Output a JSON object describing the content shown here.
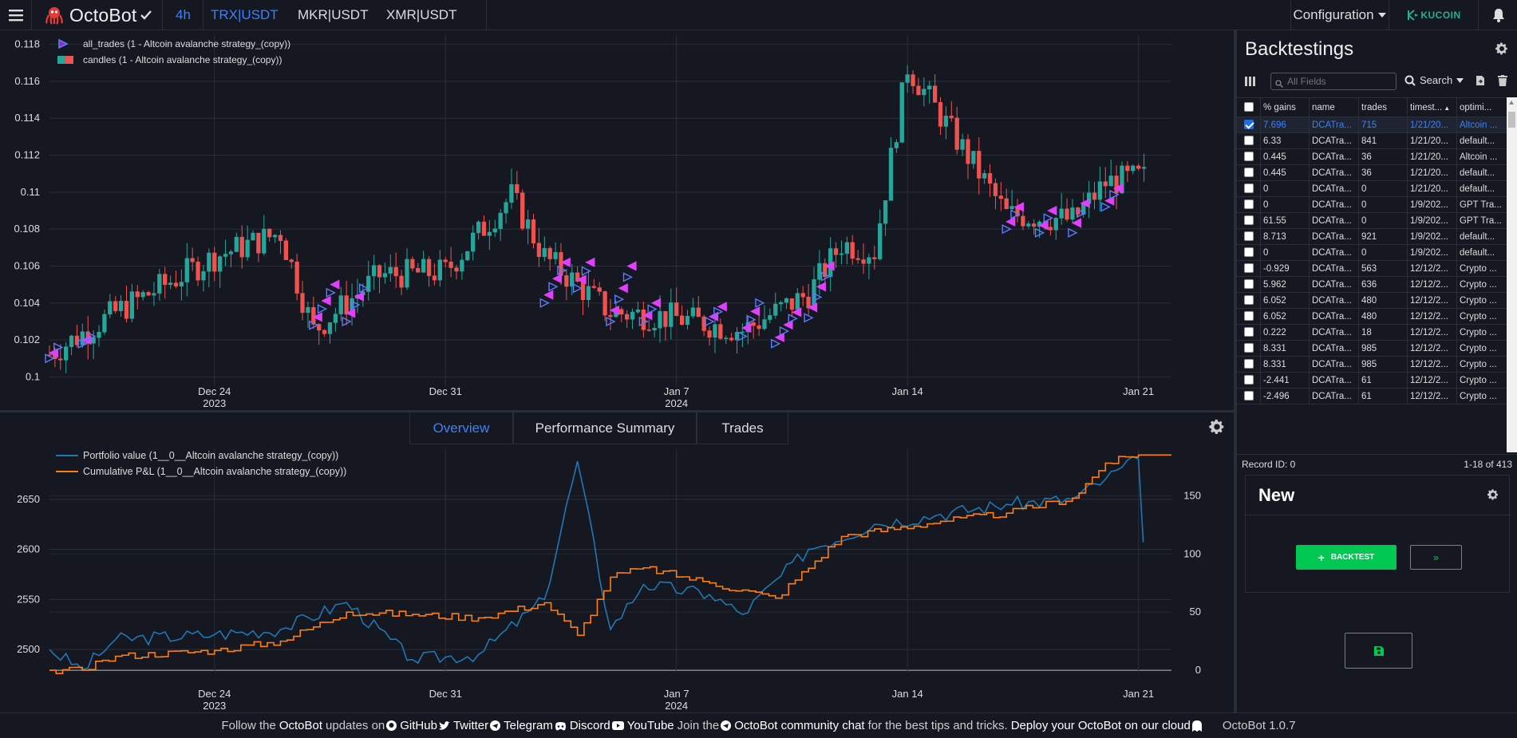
{
  "app": {
    "name": "OctoBot",
    "timeframe": "4h"
  },
  "pairs": [
    "TRX|USDT",
    "MKR|USDT",
    "XMR|USDT"
  ],
  "topbar": {
    "configuration": "Configuration",
    "exchange": "KUCOIN"
  },
  "upper_chart": {
    "legend": [
      "all_trades (1 - Altcoin avalanche strategy_(copy))",
      "candles (1 - Altcoin avalanche strategy_(copy))"
    ],
    "y_ticks": [
      "0.118",
      "0.116",
      "0.114",
      "0.112",
      "0.11",
      "0.108",
      "0.106",
      "0.104",
      "0.102",
      "0.1"
    ],
    "x_ticks": [
      {
        "label": "Dec 24",
        "sub": "2023"
      },
      {
        "label": "Dec 31",
        "sub": ""
      },
      {
        "label": "Jan 7",
        "sub": "2024"
      },
      {
        "label": "Jan 14",
        "sub": ""
      },
      {
        "label": "Jan 21",
        "sub": ""
      }
    ]
  },
  "tabs": [
    "Overview",
    "Performance Summary",
    "Trades"
  ],
  "lower_chart": {
    "legend": [
      "Portfolio value (1__0__Altcoin avalanche strategy_(copy))",
      "Cumulative P&L (1__0__Altcoin avalanche strategy_(copy))"
    ],
    "y_left_ticks": [
      "2650",
      "2600",
      "2550",
      "2500"
    ],
    "y_right_ticks": [
      "150",
      "100",
      "50",
      "0"
    ],
    "x_ticks": [
      {
        "label": "Dec 24",
        "sub": "2023"
      },
      {
        "label": "Dec 31",
        "sub": ""
      },
      {
        "label": "Jan 7",
        "sub": "2024"
      },
      {
        "label": "Jan 14",
        "sub": ""
      },
      {
        "label": "Jan 21",
        "sub": ""
      }
    ]
  },
  "chart_data": [
    {
      "type": "candlestick",
      "series_names": [
        "all_trades (1 - Altcoin avalanche strategy_(copy))",
        "candles (1 - Altcoin avalanche strategy_(copy))"
      ],
      "y_range": [
        0.0995,
        0.1185
      ],
      "x_range": [
        "2023-12-19",
        "2024-01-22"
      ],
      "approx_close_path": [
        {
          "x": "2023-12-19",
          "y": 0.1012
        },
        {
          "x": "2023-12-21",
          "y": 0.1035
        },
        {
          "x": "2023-12-24",
          "y": 0.1065
        },
        {
          "x": "2023-12-26",
          "y": 0.1078
        },
        {
          "x": "2023-12-27",
          "y": 0.1025
        },
        {
          "x": "2023-12-29",
          "y": 0.1055
        },
        {
          "x": "2023-12-31",
          "y": 0.1057
        },
        {
          "x": "2024-01-02",
          "y": 0.1098
        },
        {
          "x": "2024-01-03",
          "y": 0.1065
        },
        {
          "x": "2024-01-05",
          "y": 0.1035
        },
        {
          "x": "2024-01-07",
          "y": 0.1032
        },
        {
          "x": "2024-01-09",
          "y": 0.1025
        },
        {
          "x": "2024-01-11",
          "y": 0.1045
        },
        {
          "x": "2024-01-12",
          "y": 0.1072
        },
        {
          "x": "2024-01-13",
          "y": 0.1068
        },
        {
          "x": "2024-01-14",
          "y": 0.1168
        },
        {
          "x": "2024-01-16",
          "y": 0.1115
        },
        {
          "x": "2024-01-17",
          "y": 0.1088
        },
        {
          "x": "2024-01-19",
          "y": 0.1085
        },
        {
          "x": "2024-01-20",
          "y": 0.1105
        },
        {
          "x": "2024-01-21",
          "y": 0.1108
        }
      ]
    },
    {
      "type": "line",
      "series": [
        {
          "name": "Portfolio value (1__0__Altcoin avalanche strategy_(copy))",
          "axis": "left",
          "points": [
            {
              "x": "2023-12-19",
              "y": 2500
            },
            {
              "x": "2023-12-20",
              "y": 2480
            },
            {
              "x": "2023-12-21",
              "y": 2510
            },
            {
              "x": "2023-12-24",
              "y": 2515
            },
            {
              "x": "2023-12-26",
              "y": 2520
            },
            {
              "x": "2023-12-28",
              "y": 2547
            },
            {
              "x": "2023-12-30",
              "y": 2490
            },
            {
              "x": "2024-01-01",
              "y": 2495
            },
            {
              "x": "2024-01-03",
              "y": 2550
            },
            {
              "x": "2024-01-04",
              "y": 2688
            },
            {
              "x": "2024-01-05",
              "y": 2520
            },
            {
              "x": "2024-01-06",
              "y": 2565
            },
            {
              "x": "2024-01-08",
              "y": 2555
            },
            {
              "x": "2024-01-09",
              "y": 2535
            },
            {
              "x": "2024-01-11",
              "y": 2600
            },
            {
              "x": "2024-01-13",
              "y": 2625
            },
            {
              "x": "2024-01-15",
              "y": 2635
            },
            {
              "x": "2024-01-17",
              "y": 2645
            },
            {
              "x": "2024-01-19",
              "y": 2650
            },
            {
              "x": "2024-01-20",
              "y": 2670
            },
            {
              "x": "2024-01-21",
              "y": 2690
            },
            {
              "x": "2024-01-21",
              "y": 2607
            }
          ]
        },
        {
          "name": "Cumulative P&L (1__0__Altcoin avalanche strategy_(copy))",
          "axis": "right",
          "points": [
            {
              "x": "2023-12-19",
              "y": 0
            },
            {
              "x": "2023-12-20",
              "y": 0
            },
            {
              "x": "2023-12-21",
              "y": 12
            },
            {
              "x": "2023-12-24",
              "y": 17
            },
            {
              "x": "2023-12-26",
              "y": 25
            },
            {
              "x": "2023-12-28",
              "y": 50
            },
            {
              "x": "2023-12-30",
              "y": 48
            },
            {
              "x": "2024-01-01",
              "y": 45
            },
            {
              "x": "2024-01-03",
              "y": 58
            },
            {
              "x": "2024-01-04",
              "y": 30
            },
            {
              "x": "2024-01-05",
              "y": 80
            },
            {
              "x": "2024-01-06",
              "y": 88
            },
            {
              "x": "2024-01-08",
              "y": 75
            },
            {
              "x": "2024-01-10",
              "y": 62
            },
            {
              "x": "2024-01-12",
              "y": 115
            },
            {
              "x": "2024-01-15",
              "y": 128
            },
            {
              "x": "2024-01-17",
              "y": 135
            },
            {
              "x": "2024-01-19",
              "y": 148
            },
            {
              "x": "2024-01-20",
              "y": 178
            },
            {
              "x": "2024-01-21",
              "y": 185
            }
          ]
        }
      ],
      "y_left_range": [
        2477,
        2700
      ],
      "y_right_range": [
        -2,
        190
      ]
    }
  ],
  "backtestings": {
    "title": "Backtestings",
    "search_placeholder": "All Fields",
    "search_label": "Search",
    "columns": [
      "% gains",
      "name",
      "trades",
      "timest...",
      "optimi..."
    ],
    "rows": [
      {
        "gains": "7.696",
        "name": "DCATra...",
        "trades": "715",
        "ts": "1/21/20...",
        "opt": "Altcoin ...",
        "checked": true
      },
      {
        "gains": "6.33",
        "name": "DCATra...",
        "trades": "841",
        "ts": "1/21/20...",
        "opt": "default..."
      },
      {
        "gains": "0.445",
        "name": "DCATra...",
        "trades": "36",
        "ts": "1/21/20...",
        "opt": "Altcoin ..."
      },
      {
        "gains": "0.445",
        "name": "DCATra...",
        "trades": "36",
        "ts": "1/21/20...",
        "opt": "default..."
      },
      {
        "gains": "0",
        "name": "DCATra...",
        "trades": "0",
        "ts": "1/21/20...",
        "opt": "default..."
      },
      {
        "gains": "0",
        "name": "DCATra...",
        "trades": "0",
        "ts": "1/9/202...",
        "opt": "GPT Tra..."
      },
      {
        "gains": "61.55",
        "name": "DCATra...",
        "trades": "0",
        "ts": "1/9/202...",
        "opt": "GPT Tra..."
      },
      {
        "gains": "8.713",
        "name": "DCATra...",
        "trades": "921",
        "ts": "1/9/202...",
        "opt": "default..."
      },
      {
        "gains": "0",
        "name": "DCATra...",
        "trades": "0",
        "ts": "1/9/202...",
        "opt": "default..."
      },
      {
        "gains": "-0.929",
        "name": "DCATra...",
        "trades": "563",
        "ts": "12/12/2...",
        "opt": "Crypto ..."
      },
      {
        "gains": "5.962",
        "name": "DCATra...",
        "trades": "636",
        "ts": "12/12/2...",
        "opt": "Crypto ..."
      },
      {
        "gains": "6.052",
        "name": "DCATra...",
        "trades": "480",
        "ts": "12/12/2...",
        "opt": "Crypto ..."
      },
      {
        "gains": "6.052",
        "name": "DCATra...",
        "trades": "480",
        "ts": "12/12/2...",
        "opt": "Crypto ..."
      },
      {
        "gains": "0.222",
        "name": "DCATra...",
        "trades": "18",
        "ts": "12/12/2...",
        "opt": "Crypto ..."
      },
      {
        "gains": "8.331",
        "name": "DCATra...",
        "trades": "985",
        "ts": "12/12/2...",
        "opt": "Crypto ..."
      },
      {
        "gains": "8.331",
        "name": "DCATra...",
        "trades": "985",
        "ts": "12/12/2...",
        "opt": "Crypto ..."
      },
      {
        "gains": "-2.441",
        "name": "DCATra...",
        "trades": "61",
        "ts": "12/12/2...",
        "opt": "Crypto ..."
      },
      {
        "gains": "-2.496",
        "name": "DCATra...",
        "trades": "61",
        "ts": "12/12/2...",
        "opt": "Crypto ..."
      }
    ],
    "record_id": "Record ID: 0",
    "record_range": "1-18 of 413"
  },
  "new_panel": {
    "title": "New",
    "backtest_label": "BACKTEST",
    "forward_label": "»"
  },
  "footer": {
    "p1": "Follow the",
    "octobot1": "OctoBot",
    "p2": "updates on",
    "github": "GitHub",
    "twitter": "Twitter",
    "telegram": "Telegram",
    "discord": "Discord",
    "youtube": "YouTube",
    "p3": "Join the",
    "community": "OctoBot community chat",
    "p4": "for the best tips and tricks.",
    "deploy": "Deploy your OctoBot on our cloud",
    "version": "OctoBot 1.0.7"
  },
  "colors": {
    "accent": "#3b82f6",
    "up": "#26a69a",
    "down": "#ef5350",
    "portfolio": "#1f77b4",
    "pnl": "#ff7f0e",
    "green_button": "#00c853"
  }
}
